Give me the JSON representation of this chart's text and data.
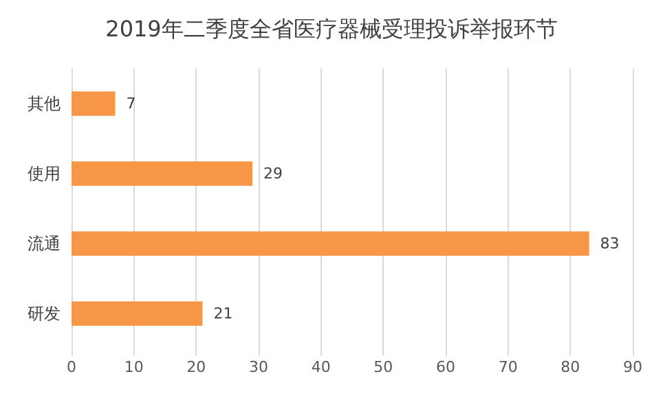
{
  "chart_data": {
    "type": "bar",
    "orientation": "horizontal",
    "title": "2019年二季度全省医疗器械受理投诉举报环节",
    "categories": [
      "其他",
      "使用",
      "流通",
      "研发"
    ],
    "values": [
      7,
      29,
      83,
      21
    ],
    "color": "#f79646",
    "xlim": [
      0,
      90
    ],
    "xticks": [
      0,
      10,
      20,
      30,
      40,
      50,
      60,
      70,
      80,
      90
    ],
    "grid": "x",
    "data_labels": true
  }
}
